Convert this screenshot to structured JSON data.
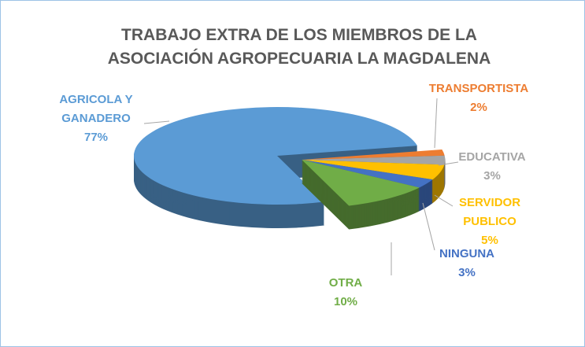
{
  "chart_data": {
    "type": "pie3d",
    "title": "TRABAJO EXTRA DE LOS MIEMBROS DE LA ASOCIACIÓN AGROPECUARIA LA MAGDALENA",
    "categories": [
      "AGRICOLA Y GANADERO",
      "TRANSPORTISTA",
      "EDUCATIVA",
      "SERVIDOR PUBLICO",
      "NINGUNA",
      "OTRA"
    ],
    "values": [
      77,
      2,
      3,
      5,
      3,
      10
    ],
    "value_labels": [
      "77%",
      "2%",
      "3%",
      "5%",
      "3%",
      "10%"
    ],
    "colors": [
      "#5b9bd5",
      "#ed7d31",
      "#a5a5a5",
      "#ffc000",
      "#4472c4",
      "#70ad47"
    ]
  }
}
